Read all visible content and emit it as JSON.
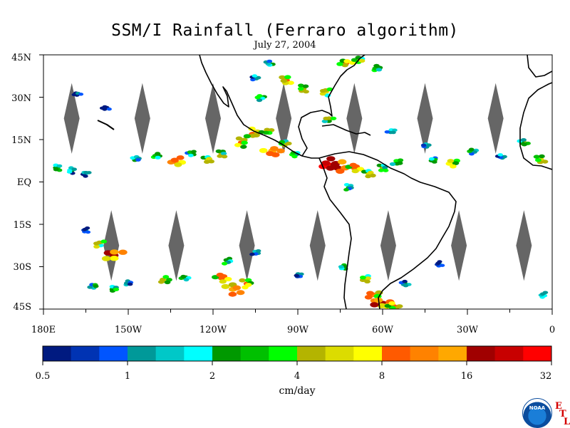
{
  "title": "SSM/I Rainfall (Ferraro algorithm)",
  "subtitle": "July 27, 2004",
  "map": {
    "lon_range": [
      -180,
      0
    ],
    "lat_range": [
      -45,
      45
    ],
    "y_ticks": [
      "45N",
      "30N",
      "15N",
      "EQ",
      "15S",
      "30S",
      "45S"
    ],
    "x_ticks": [
      "180E",
      "150W",
      "120W",
      "90W",
      "60W",
      "30W",
      "0"
    ],
    "swath_gap_color": "#666666",
    "coast_color": "#000000",
    "rain_cells": [
      {
        "lon": -175,
        "lat": 5,
        "v": 3
      },
      {
        "lon": -170,
        "lat": 4,
        "v": 2
      },
      {
        "lon": -165,
        "lat": 3,
        "v": 1.5
      },
      {
        "lon": -168,
        "lat": 31,
        "v": 1.2
      },
      {
        "lon": -158,
        "lat": 26,
        "v": 1
      },
      {
        "lon": -147,
        "lat": 8,
        "v": 3
      },
      {
        "lon": -140,
        "lat": 9,
        "v": 4
      },
      {
        "lon": -133,
        "lat": 7,
        "v": 12
      },
      {
        "lon": -128,
        "lat": 10,
        "v": 3
      },
      {
        "lon": -122,
        "lat": 8,
        "v": 6
      },
      {
        "lon": -117,
        "lat": 10,
        "v": 5
      },
      {
        "lon": -110,
        "lat": 14,
        "v": 8
      },
      {
        "lon": -106,
        "lat": 17,
        "v": 10
      },
      {
        "lon": -101,
        "lat": 18,
        "v": 6
      },
      {
        "lon": -99,
        "lat": 11,
        "v": 14
      },
      {
        "lon": -95,
        "lat": 14,
        "v": 5
      },
      {
        "lon": -91,
        "lat": 10,
        "v": 4
      },
      {
        "lon": -103,
        "lat": 30,
        "v": 4
      },
      {
        "lon": -105,
        "lat": 37,
        "v": 2
      },
      {
        "lon": -100,
        "lat": 42,
        "v": 3
      },
      {
        "lon": -94,
        "lat": 36,
        "v": 8
      },
      {
        "lon": -88,
        "lat": 33,
        "v": 5
      },
      {
        "lon": -80,
        "lat": 32,
        "v": 6
      },
      {
        "lon": -79,
        "lat": 22,
        "v": 5
      },
      {
        "lon": -73,
        "lat": 42,
        "v": 8
      },
      {
        "lon": -68,
        "lat": 43,
        "v": 6
      },
      {
        "lon": -62,
        "lat": 40,
        "v": 5
      },
      {
        "lon": -79,
        "lat": 6,
        "v": 32
      },
      {
        "lon": -76,
        "lat": 5,
        "v": 20
      },
      {
        "lon": -70,
        "lat": 5,
        "v": 10
      },
      {
        "lon": -65,
        "lat": 3,
        "v": 6
      },
      {
        "lon": -60,
        "lat": 5,
        "v": 4
      },
      {
        "lon": -72,
        "lat": -2,
        "v": 3
      },
      {
        "lon": -55,
        "lat": 7,
        "v": 5
      },
      {
        "lon": -57,
        "lat": 18,
        "v": 2
      },
      {
        "lon": -45,
        "lat": 13,
        "v": 1.5
      },
      {
        "lon": -42,
        "lat": 8,
        "v": 3
      },
      {
        "lon": -35,
        "lat": 7,
        "v": 8
      },
      {
        "lon": -28,
        "lat": 11,
        "v": 3
      },
      {
        "lon": -18,
        "lat": 9,
        "v": 2
      },
      {
        "lon": -10,
        "lat": 14,
        "v": 4
      },
      {
        "lon": -4,
        "lat": 8,
        "v": 6
      },
      {
        "lon": -165,
        "lat": -17,
        "v": 1
      },
      {
        "lon": -160,
        "lat": -22,
        "v": 6
      },
      {
        "lon": -155,
        "lat": -26,
        "v": 18
      },
      {
        "lon": -162,
        "lat": -37,
        "v": 3
      },
      {
        "lon": -155,
        "lat": -38,
        "v": 4
      },
      {
        "lon": -150,
        "lat": -36,
        "v": 2
      },
      {
        "lon": -137,
        "lat": -35,
        "v": 6
      },
      {
        "lon": -130,
        "lat": -34,
        "v": 3
      },
      {
        "lon": -117,
        "lat": -34,
        "v": 10
      },
      {
        "lon": -113,
        "lat": -38,
        "v": 14
      },
      {
        "lon": -108,
        "lat": -36,
        "v": 8
      },
      {
        "lon": -115,
        "lat": -28,
        "v": 4
      },
      {
        "lon": -105,
        "lat": -25,
        "v": 2
      },
      {
        "lon": -90,
        "lat": -33,
        "v": 1.5
      },
      {
        "lon": -74,
        "lat": -30,
        "v": 3
      },
      {
        "lon": -66,
        "lat": -34,
        "v": 6
      },
      {
        "lon": -63,
        "lat": -40,
        "v": 12
      },
      {
        "lon": -60,
        "lat": -43,
        "v": 18
      },
      {
        "lon": -56,
        "lat": -44,
        "v": 8
      },
      {
        "lon": -52,
        "lat": -36,
        "v": 2
      },
      {
        "lon": -40,
        "lat": -29,
        "v": 1.2
      },
      {
        "lon": -3,
        "lat": -40,
        "v": 2
      }
    ]
  },
  "colorbar": {
    "colors": [
      "#001a80",
      "#0033b3",
      "#0055ff",
      "#009999",
      "#00c8c8",
      "#00ffff",
      "#009900",
      "#00c000",
      "#00ff00",
      "#b4b400",
      "#dcdc00",
      "#ffff00",
      "#ff5a00",
      "#ff8200",
      "#ffa800",
      "#a00000",
      "#c80000",
      "#ff0000"
    ],
    "labels": [
      "0.5",
      "1",
      "2",
      "4",
      "8",
      "16",
      "32"
    ],
    "units": "cm/day"
  },
  "logo": {
    "name": "noaa-logo",
    "text": "NOAA",
    "etl_letters": [
      "E",
      "T",
      "L"
    ]
  }
}
